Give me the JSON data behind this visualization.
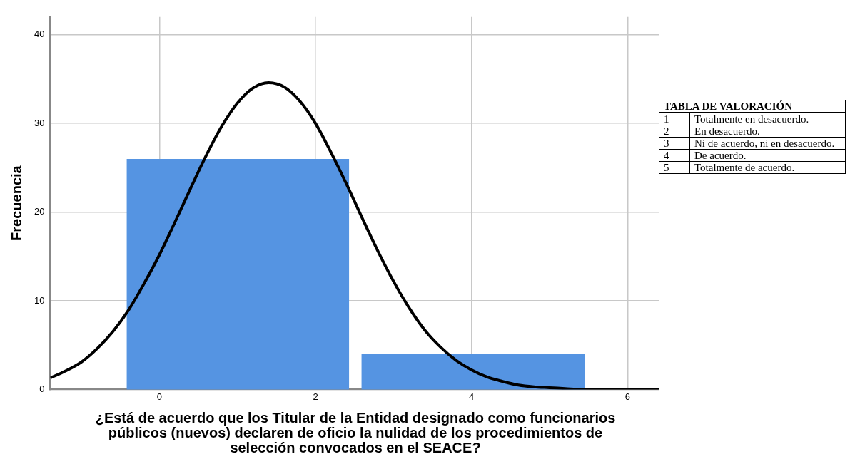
{
  "chart_data": {
    "type": "histogram",
    "xlabel": "¿Está de acuerdo que los Titular de la Entidad designado como funcionarios públicos (nuevos) declaren de oficio la nulidad de los procedimientos de selección convocados en el SEACE?",
    "ylabel": "Frecuencia",
    "bins": [
      -0.42,
      2.43,
      2.59,
      5.45
    ],
    "values": [
      26,
      0,
      4
    ],
    "color": "#5594e2",
    "series": [
      {
        "type": "line",
        "color": "#000000",
        "x": [
          -1.4,
          -1.2,
          -1.0,
          -0.8,
          -0.6,
          -0.4,
          -0.2,
          0,
          0.2,
          0.4,
          0.6,
          0.8,
          1.0,
          1.2,
          1.4,
          1.6,
          1.8,
          2.0,
          2.2,
          2.4,
          2.6,
          2.8,
          3.0,
          3.2,
          3.4,
          3.6,
          3.8,
          4.0,
          4.2,
          4.4,
          4.6,
          4.8,
          5.0,
          5.2,
          5.4,
          5.6,
          5.8,
          6.0,
          6.2,
          6.4
        ],
        "values": [
          1.3,
          2.1,
          3.1,
          4.6,
          6.5,
          8.9,
          11.9,
          15.2,
          18.9,
          22.7,
          26.4,
          29.7,
          32.3,
          34.0,
          34.6,
          34.1,
          32.5,
          30.0,
          26.7,
          23.1,
          19.3,
          15.6,
          12.2,
          9.2,
          6.7,
          4.8,
          3.3,
          2.2,
          1.4,
          0.9,
          0.5,
          0.3,
          0.2,
          0.1,
          0,
          0,
          0,
          0,
          0,
          0
        ]
      }
    ],
    "xlim": [
      -1.4,
      6.4
    ],
    "xticks": [
      0,
      2,
      4,
      6
    ],
    "ylim": [
      0,
      42
    ],
    "yticks": [
      0,
      10,
      20,
      30,
      40
    ],
    "grid": true,
    "legend": false,
    "marker": "none",
    "line_style": "solid",
    "annotations": [
      "TABLA DE VALORACIÓN",
      "1",
      "Totalmente en desacuerdo.",
      "2",
      "En desacuerdo.",
      "3",
      "Ni de acuerdo, ni en desacuerdo.",
      "4",
      "De acuerdo.",
      "5",
      "Totalmente de acuerdo."
    ]
  }
}
